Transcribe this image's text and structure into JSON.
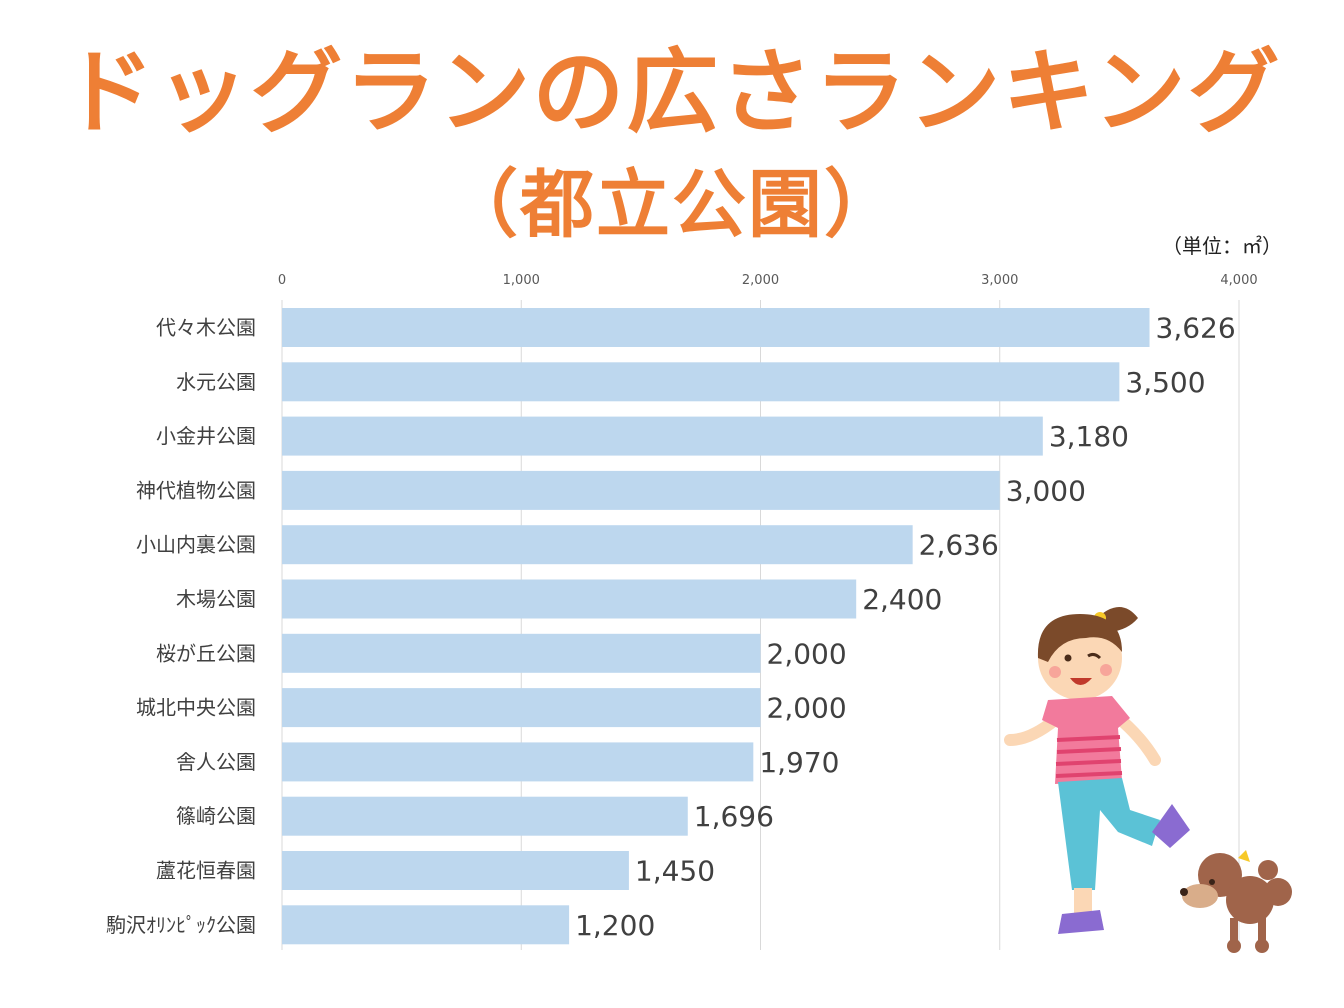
{
  "header": {
    "title": "ドッグランの広さランキング",
    "subtitle": "（都立公園）",
    "unit": "（単位：㎡）"
  },
  "chart_data": {
    "type": "bar",
    "orientation": "horizontal",
    "categories": [
      "代々木公園",
      "水元公園",
      "小金井公園",
      "神代植物公園",
      "小山内裏公園",
      "木場公園",
      "桜が丘公園",
      "城北中央公園",
      "舎人公園",
      "篠崎公園",
      "蘆花恒春園",
      "駒沢ｵﾘﾝﾋﾟｯｸ公園"
    ],
    "values": [
      3626,
      3500,
      3180,
      3000,
      2636,
      2400,
      2000,
      2000,
      1970,
      1696,
      1450,
      1200
    ],
    "value_labels": [
      "3,626",
      "3,500",
      "3,180",
      "3,000",
      "2,636",
      "2,400",
      "2,000",
      "2,000",
      "1,970",
      "1,696",
      "1,450",
      "1,200"
    ],
    "xlim": [
      0,
      4000
    ],
    "ticks": [
      0,
      1000,
      2000,
      3000,
      4000
    ],
    "tick_labels": [
      "0",
      "1,000",
      "2,000",
      "3,000",
      "4,000"
    ],
    "axis_position": "top",
    "grid": true,
    "bar_color": "#bdd7ee",
    "legend": "none"
  },
  "colors": {
    "title": "#ee7f35",
    "bar": "#bdd7ee",
    "grid": "#d9d9d9"
  },
  "illustration": {
    "name": "girl-running-with-poodle"
  }
}
